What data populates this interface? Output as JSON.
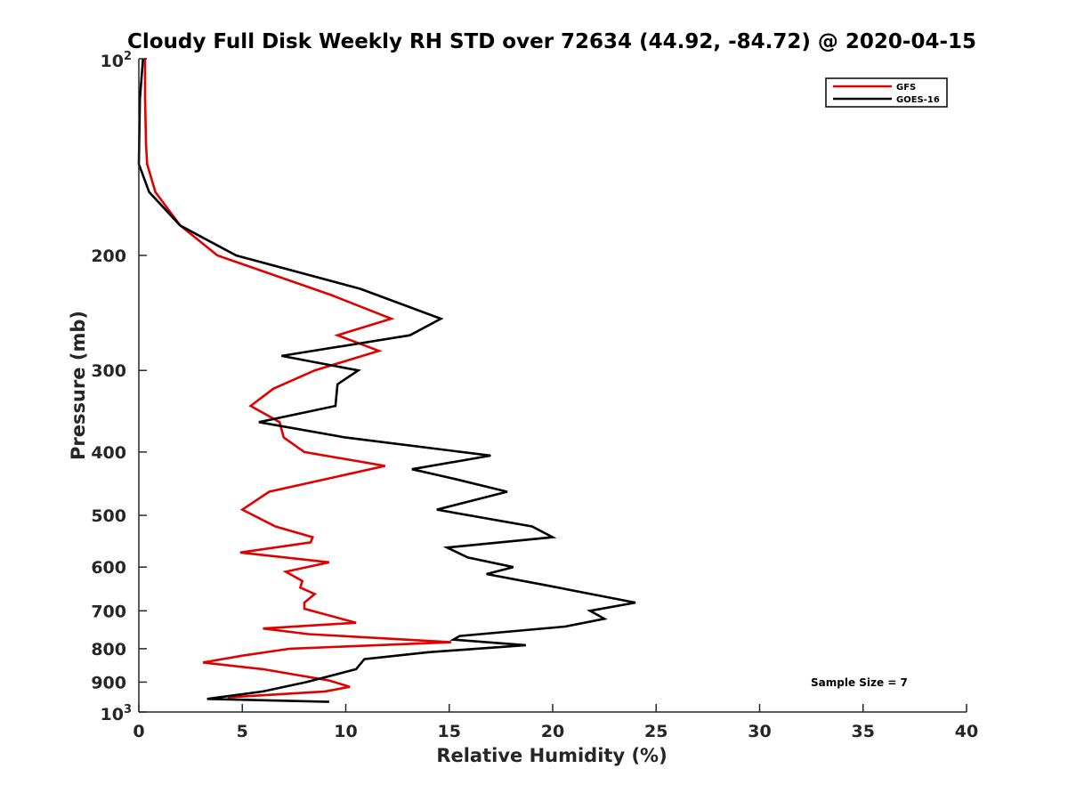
{
  "chart_data": {
    "type": "line",
    "title": "Cloudy Full Disk Weekly RH STD over 72634 (44.92, -84.72) @ 2020-04-15",
    "xlabel": "Relative Humidity (%)",
    "ylabel": "Pressure (mb)",
    "xlim": [
      0,
      40
    ],
    "ylim": [
      100,
      1000
    ],
    "yscale": "log",
    "y_reversed": true,
    "grid": false,
    "legend_position": "top-right",
    "x_ticks": [
      "0",
      "5",
      "10",
      "15",
      "20",
      "25",
      "30",
      "35",
      "40"
    ],
    "y_ticks": [
      {
        "value": 100,
        "label": "10",
        "sup": "2"
      },
      {
        "value": 200,
        "label": "200"
      },
      {
        "value": 300,
        "label": "300"
      },
      {
        "value": 400,
        "label": "400"
      },
      {
        "value": 500,
        "label": "500"
      },
      {
        "value": 600,
        "label": "600"
      },
      {
        "value": 700,
        "label": "700"
      },
      {
        "value": 800,
        "label": "800"
      },
      {
        "value": 900,
        "label": "900"
      },
      {
        "value": 1000,
        "label": "10",
        "sup": "3"
      }
    ],
    "annotation": "Sample Size = 7",
    "series": [
      {
        "name": "GFS",
        "color": "#e00000",
        "points": [
          [
            0.3,
            100
          ],
          [
            0.3,
            115
          ],
          [
            0.35,
            135
          ],
          [
            0.4,
            145
          ],
          [
            0.8,
            160
          ],
          [
            2.0,
            180
          ],
          [
            3.8,
            200
          ],
          [
            9.3,
            230
          ],
          [
            12.2,
            250
          ],
          [
            9.6,
            265
          ],
          [
            11.6,
            280
          ],
          [
            8.5,
            300
          ],
          [
            6.5,
            320
          ],
          [
            5.4,
            340
          ],
          [
            6.8,
            360
          ],
          [
            7.0,
            380
          ],
          [
            8.0,
            400
          ],
          [
            11.9,
            420
          ],
          [
            6.3,
            460
          ],
          [
            5.0,
            490
          ],
          [
            6.6,
            520
          ],
          [
            8.4,
            540
          ],
          [
            8.3,
            550
          ],
          [
            4.9,
            570
          ],
          [
            9.2,
            590
          ],
          [
            7.1,
            610
          ],
          [
            7.9,
            630
          ],
          [
            7.8,
            645
          ],
          [
            8.5,
            660
          ],
          [
            8.0,
            680
          ],
          [
            8.0,
            695
          ],
          [
            10.5,
            730
          ],
          [
            6.0,
            745
          ],
          [
            8.2,
            760
          ],
          [
            15.1,
            782
          ],
          [
            7.3,
            800
          ],
          [
            5.0,
            820
          ],
          [
            3.1,
            840
          ],
          [
            6.0,
            860
          ],
          [
            9.2,
            895
          ],
          [
            10.2,
            915
          ],
          [
            9.0,
            930
          ],
          [
            4.3,
            950
          ]
        ]
      },
      {
        "name": "GOES-16",
        "color": "#000000",
        "points": [
          [
            0.2,
            100
          ],
          [
            0.05,
            115
          ],
          [
            0.0,
            145
          ],
          [
            0.5,
            160
          ],
          [
            2.0,
            180
          ],
          [
            4.7,
            200
          ],
          [
            10.7,
            225
          ],
          [
            14.6,
            250
          ],
          [
            13.1,
            265
          ],
          [
            6.9,
            285
          ],
          [
            10.6,
            300
          ],
          [
            9.6,
            315
          ],
          [
            9.5,
            340
          ],
          [
            5.8,
            360
          ],
          [
            10.0,
            380
          ],
          [
            17.0,
            405
          ],
          [
            13.2,
            425
          ],
          [
            15.3,
            440
          ],
          [
            17.8,
            460
          ],
          [
            14.4,
            490
          ],
          [
            19.0,
            520
          ],
          [
            20.0,
            540
          ],
          [
            14.9,
            560
          ],
          [
            15.9,
            580
          ],
          [
            18.1,
            600
          ],
          [
            16.8,
            615
          ],
          [
            19.7,
            640
          ],
          [
            24.0,
            680
          ],
          [
            21.8,
            700
          ],
          [
            22.5,
            720
          ],
          [
            20.6,
            740
          ],
          [
            15.5,
            765
          ],
          [
            15.2,
            775
          ],
          [
            18.7,
            790
          ],
          [
            14.0,
            810
          ],
          [
            10.9,
            830
          ],
          [
            10.5,
            860
          ],
          [
            8.1,
            900
          ],
          [
            6.0,
            930
          ],
          [
            3.3,
            955
          ],
          [
            9.2,
            965
          ]
        ]
      }
    ]
  }
}
